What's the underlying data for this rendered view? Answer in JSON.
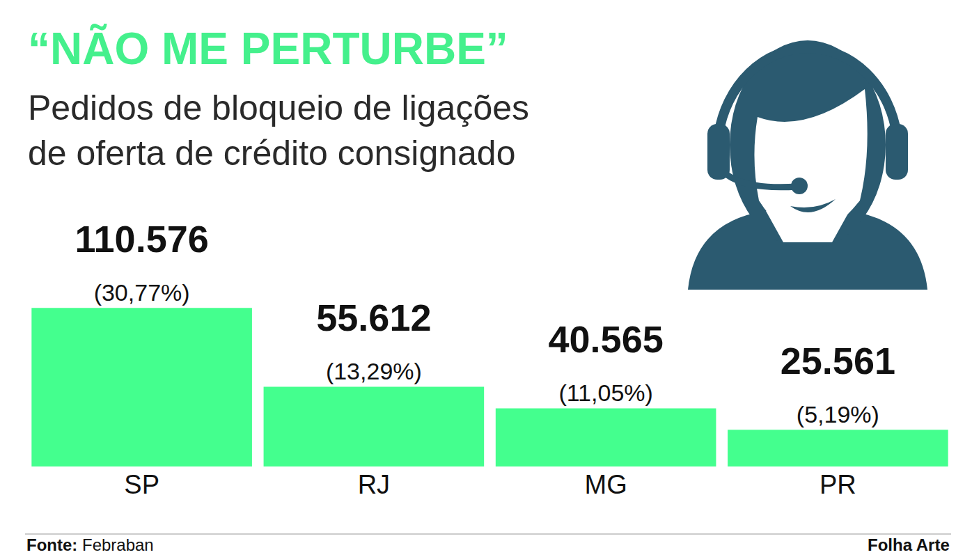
{
  "chart_data": {
    "type": "bar",
    "title": "“NÃO ME PERTURBE”",
    "subtitle": "Pedidos de bloqueio de ligações de oferta de crédito consignado",
    "categories": [
      "SP",
      "RJ",
      "MG",
      "PR"
    ],
    "values": [
      110576,
      55612,
      40565,
      25561
    ],
    "value_labels": [
      "110.576",
      "55.612",
      "40.565",
      "25.561"
    ],
    "share_labels": [
      "(30,77%)",
      "(13,29%)",
      "(11,05%)",
      "(5,19%)"
    ],
    "color": "#44ff8e",
    "ylim": [
      0,
      170000
    ],
    "data_labels": true,
    "tick_labels": "x",
    "grid": false,
    "source_label": "Fonte:",
    "source": "Febraban",
    "credit": "Folha Arte"
  }
}
